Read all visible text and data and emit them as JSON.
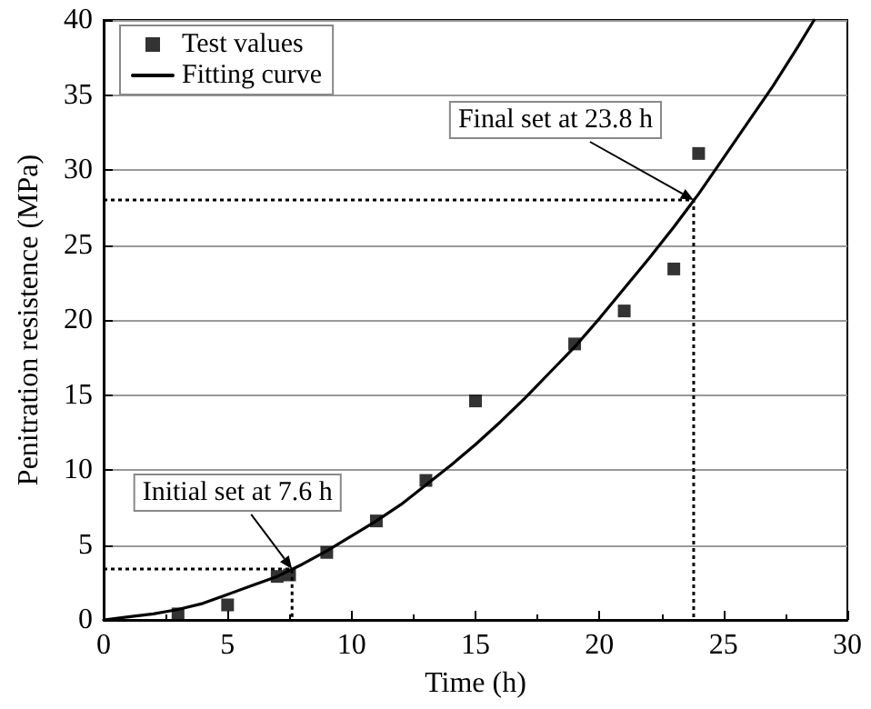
{
  "chart_data": {
    "type": "scatter",
    "xlabel": "Time (h)",
    "ylabel": "Penitration resistence (MPa)",
    "xlim": [
      0,
      30
    ],
    "xticks": [
      0,
      5,
      10,
      15,
      20,
      25,
      30
    ],
    "ylim": [
      0,
      40
    ],
    "yticks": [
      0,
      5,
      10,
      15,
      20,
      25,
      30,
      35,
      40
    ],
    "grid": "y",
    "legend": "top left",
    "marker": "square",
    "series": [
      {
        "name": "Test values",
        "color": "#000000",
        "x": [
          3,
          5,
          7,
          7.5,
          9,
          11,
          13,
          15,
          19,
          21,
          23,
          24
        ],
        "values": [
          0.4,
          1.0,
          2.9,
          3.0,
          4.5,
          6.6,
          9.3,
          14.6,
          18.4,
          20.6,
          23.4,
          31.1
        ]
      },
      {
        "name": "Fitting curve",
        "type": "line",
        "marker": "none",
        "color": "#000000",
        "line_style": "solid",
        "x": [
          0,
          1,
          2,
          3,
          4,
          5,
          6,
          7,
          8,
          9,
          10,
          11,
          12,
          13,
          14,
          15,
          16,
          17,
          18,
          19,
          20,
          21,
          22,
          23,
          24,
          25,
          26,
          27,
          28,
          28.66
        ],
        "values": [
          0,
          0.2,
          0.4,
          0.7,
          1.1,
          1.7,
          2.3,
          2.9,
          3.7,
          4.6,
          5.6,
          6.6,
          7.7,
          9.0,
          10.3,
          11.7,
          13.2,
          14.8,
          16.5,
          18.2,
          20.1,
          22.1,
          24.1,
          26.2,
          28.4,
          30.8,
          33.2,
          35.6,
          38.2,
          40.0
        ]
      },
      {
        "type": "line",
        "marker": "none",
        "color": "#000000",
        "line_style": "dotted",
        "x": [
          0,
          7.6,
          7.6
        ],
        "values": [
          3.4,
          3.4,
          0
        ]
      },
      {
        "type": "line",
        "marker": "none",
        "color": "#000000",
        "line_style": "dotted",
        "x": [
          0,
          23.8,
          23.8
        ],
        "values": [
          28,
          28,
          0
        ]
      }
    ],
    "annotations": [
      {
        "text": "Initial set at 7.6 h",
        "x": 7.6,
        "y": 3.4
      },
      {
        "text": "Final set at 23.8 h",
        "x": 23.8,
        "y": 28
      }
    ]
  }
}
